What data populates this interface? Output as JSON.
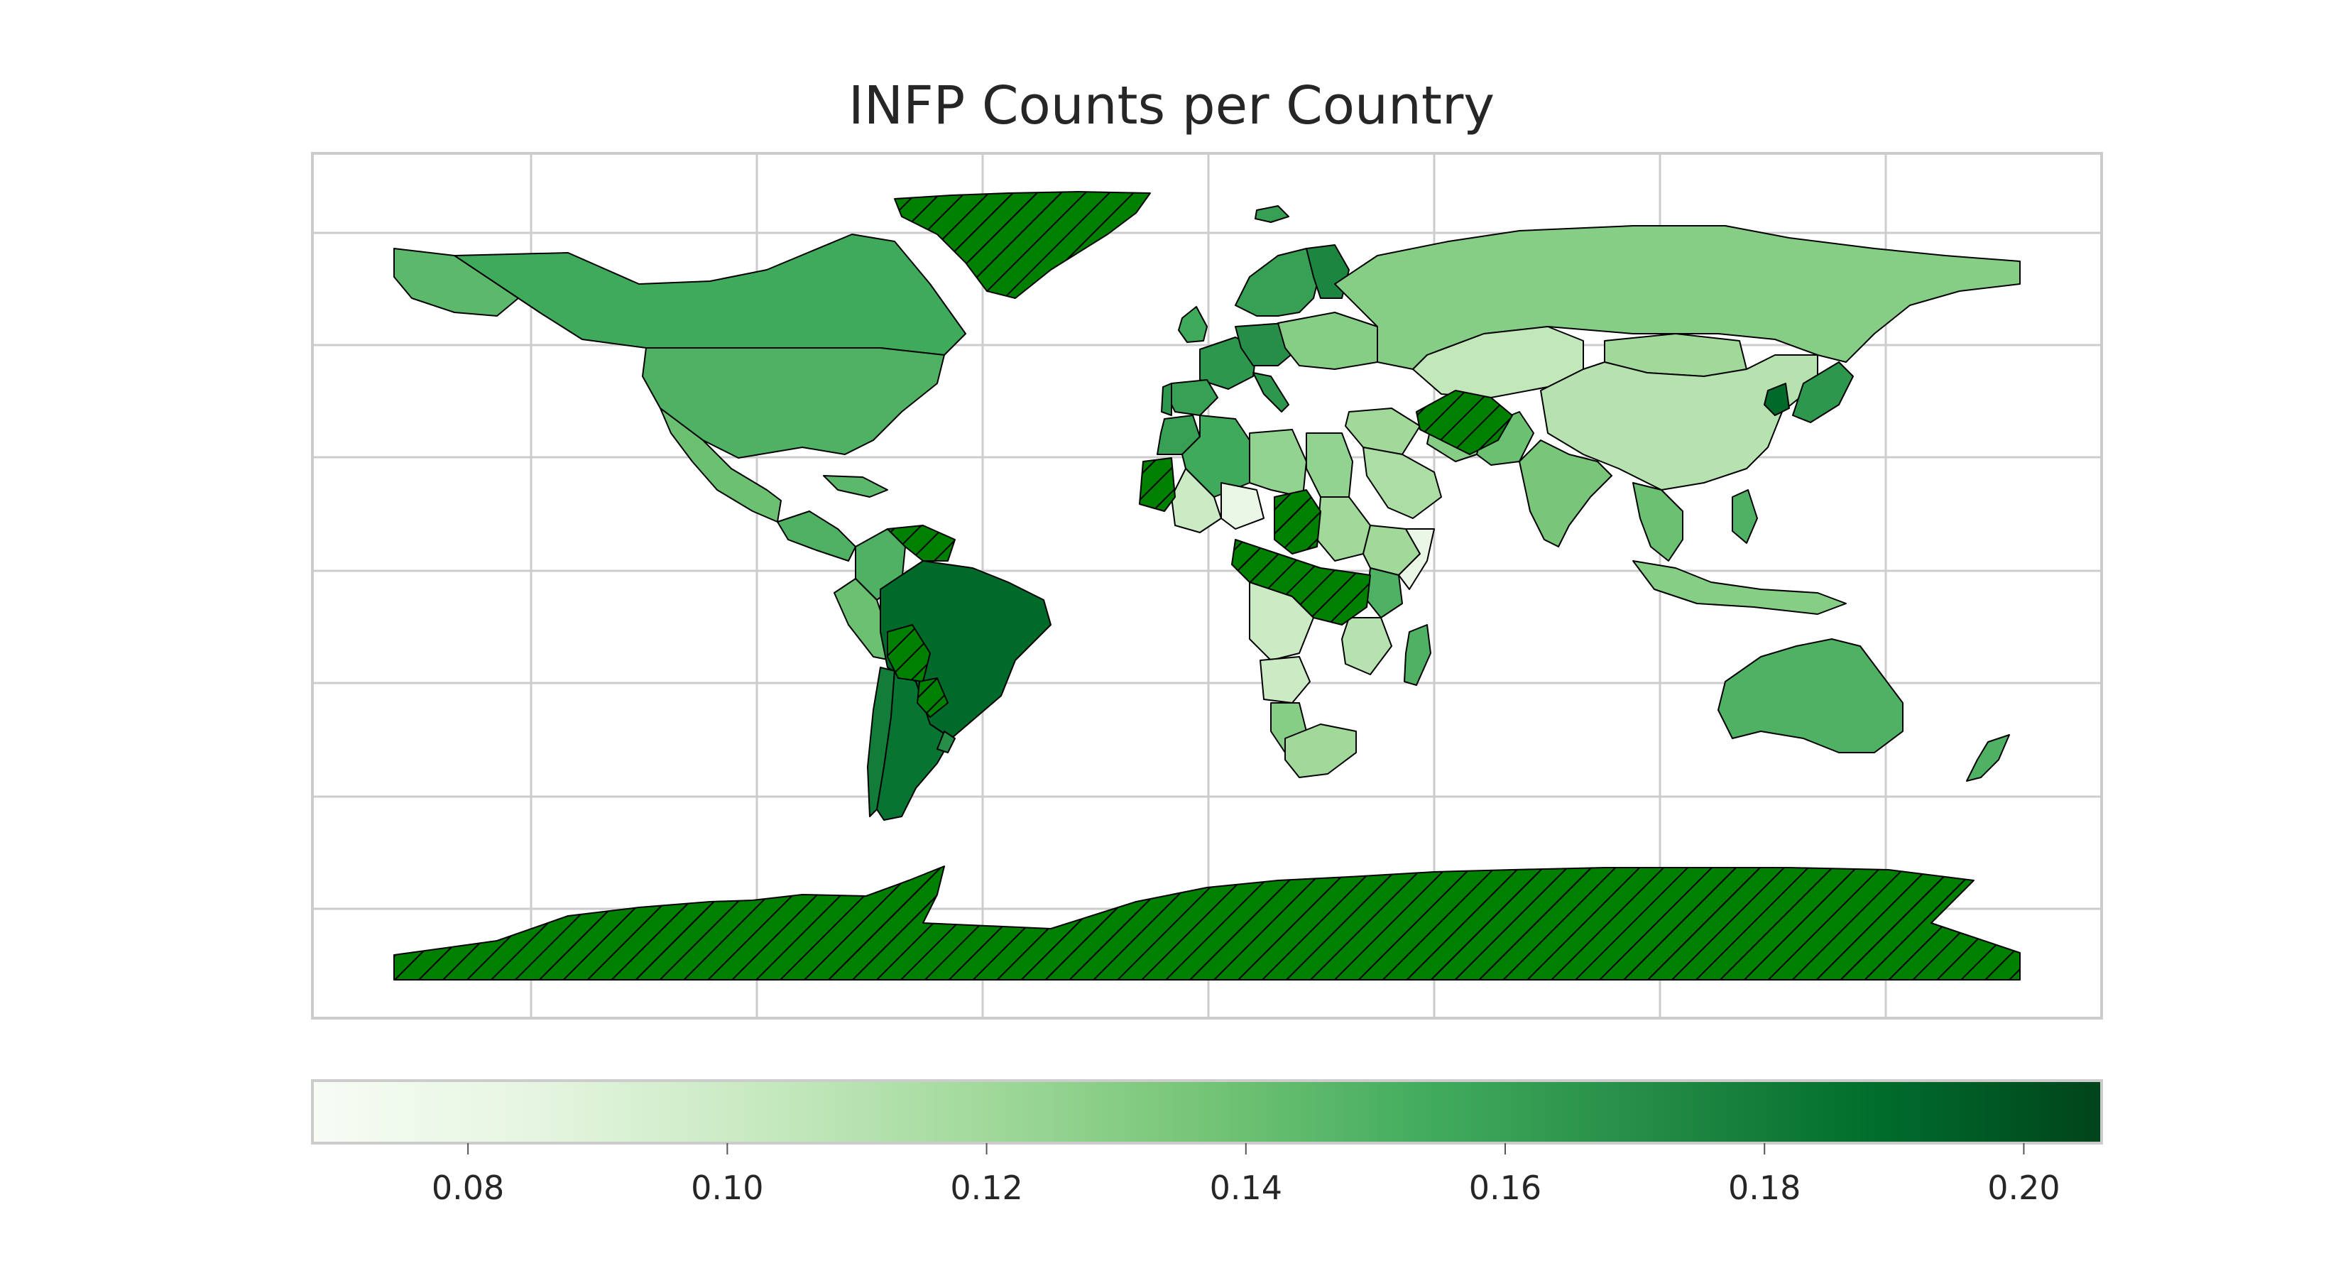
{
  "title": "INFP Counts per Country",
  "colormap": {
    "name": "Greens",
    "vmin": 0.068,
    "vmax": 0.206,
    "stops": [
      "#f7fcf5",
      "#e5f5e0",
      "#c7e9c0",
      "#a1d99b",
      "#74c476",
      "#41ab5d",
      "#238b45",
      "#006d2c",
      "#00441b"
    ]
  },
  "colorbar": {
    "ticks": [
      "0.08",
      "0.10",
      "0.12",
      "0.14",
      "0.16",
      "0.18",
      "0.20"
    ]
  },
  "missing_data_style": {
    "fill": "#008000",
    "hatch": "diagonal",
    "edge": "#000000"
  },
  "grid": true,
  "chart_data": {
    "type": "choropleth",
    "title": "INFP Counts per Country",
    "value_range": [
      0.068,
      0.206
    ],
    "colorbar_ticks": [
      0.08,
      0.1,
      0.12,
      0.14,
      0.16,
      0.18,
      0.2
    ],
    "regions": [
      {
        "name": "Canada",
        "value": 0.155
      },
      {
        "name": "United States",
        "value": 0.15
      },
      {
        "name": "Alaska",
        "value": 0.145
      },
      {
        "name": "Mexico",
        "value": 0.14
      },
      {
        "name": "Central America",
        "value": 0.15
      },
      {
        "name": "Caribbean",
        "value": 0.145
      },
      {
        "name": "Colombia",
        "value": 0.15
      },
      {
        "name": "Peru",
        "value": 0.14
      },
      {
        "name": "Brazil",
        "value": 0.19
      },
      {
        "name": "Chile",
        "value": 0.18
      },
      {
        "name": "Argentina",
        "value": 0.185
      },
      {
        "name": "Uruguay",
        "value": 0.17
      },
      {
        "name": "Iceland",
        "value": 0.16
      },
      {
        "name": "Scandinavia",
        "value": 0.16
      },
      {
        "name": "Finland",
        "value": 0.175
      },
      {
        "name": "United Kingdom",
        "value": 0.155
      },
      {
        "name": "Western Europe",
        "value": 0.165
      },
      {
        "name": "Central Europe",
        "value": 0.17
      },
      {
        "name": "Eastern Europe",
        "value": 0.13
      },
      {
        "name": "Spain",
        "value": 0.16
      },
      {
        "name": "Portugal",
        "value": 0.165
      },
      {
        "name": "Italy",
        "value": 0.165
      },
      {
        "name": "Russia",
        "value": 0.13
      },
      {
        "name": "Kazakhstan",
        "value": 0.105
      },
      {
        "name": "Mongolia",
        "value": 0.12
      },
      {
        "name": "China",
        "value": 0.11
      },
      {
        "name": "Japan",
        "value": 0.165
      },
      {
        "name": "Korea",
        "value": 0.19
      },
      {
        "name": "Iran",
        "value": 0.13
      },
      {
        "name": "Middle East",
        "value": 0.12
      },
      {
        "name": "Saudi Arabia",
        "value": 0.115
      },
      {
        "name": "Pakistan",
        "value": 0.14
      },
      {
        "name": "India",
        "value": 0.135
      },
      {
        "name": "Southeast Asia",
        "value": 0.14
      },
      {
        "name": "Philippines",
        "value": 0.15
      },
      {
        "name": "Indonesia",
        "value": 0.13
      },
      {
        "name": "Australia",
        "value": 0.15
      },
      {
        "name": "New Zealand",
        "value": 0.15
      },
      {
        "name": "Morocco",
        "value": 0.16
      },
      {
        "name": "Algeria",
        "value": 0.155
      },
      {
        "name": "Libya",
        "value": 0.125
      },
      {
        "name": "Egypt",
        "value": 0.125
      },
      {
        "name": "Mali",
        "value": 0.1
      },
      {
        "name": "Niger",
        "value": 0.08
      },
      {
        "name": "Sudan",
        "value": 0.12
      },
      {
        "name": "Ethiopia",
        "value": 0.12
      },
      {
        "name": "Somalia",
        "value": 0.08
      },
      {
        "name": "Kenya",
        "value": 0.15
      },
      {
        "name": "DR Congo",
        "value": 0.1
      },
      {
        "name": "Angola",
        "value": 0.1
      },
      {
        "name": "Tanzania",
        "value": 0.11
      },
      {
        "name": "Namibia",
        "value": 0.13
      },
      {
        "name": "South Africa",
        "value": 0.12
      },
      {
        "name": "Madagascar",
        "value": 0.15
      },
      {
        "name": "Greenland",
        "value": null
      },
      {
        "name": "Antarctica",
        "value": null
      },
      {
        "name": "Afghanistan",
        "value": null
      },
      {
        "name": "Chad",
        "value": null
      },
      {
        "name": "Central Africa",
        "value": null
      },
      {
        "name": "Mauritania",
        "value": null
      },
      {
        "name": "Venezuela",
        "value": null
      },
      {
        "name": "Bolivia",
        "value": null
      },
      {
        "name": "Paraguay",
        "value": null
      }
    ]
  }
}
